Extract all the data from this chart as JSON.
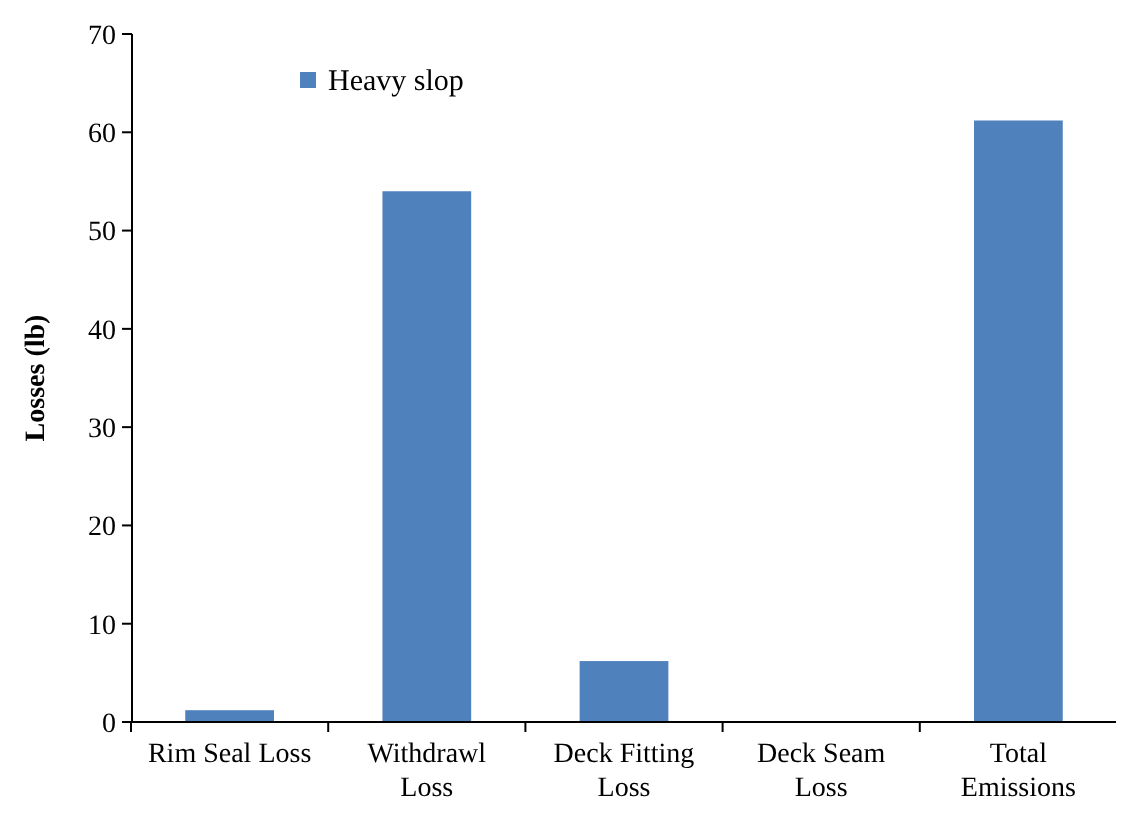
{
  "chart_data": {
    "type": "bar",
    "ylabel": "Losses (lb)",
    "categories": [
      "Rim Seal Loss",
      "Withdrawl Loss",
      "Deck Fitting Loss",
      "Deck Seam Loss",
      "Total Emissions"
    ],
    "series": [
      {
        "name": "Heavy slop",
        "color": "#4f81bd",
        "values": [
          1.2,
          54,
          6.2,
          0,
          61.2
        ]
      }
    ],
    "ylim": [
      0,
      70
    ],
    "yticks": [
      0,
      10,
      20,
      30,
      40,
      50,
      60,
      70
    ],
    "grid": false,
    "legend": "top left"
  }
}
